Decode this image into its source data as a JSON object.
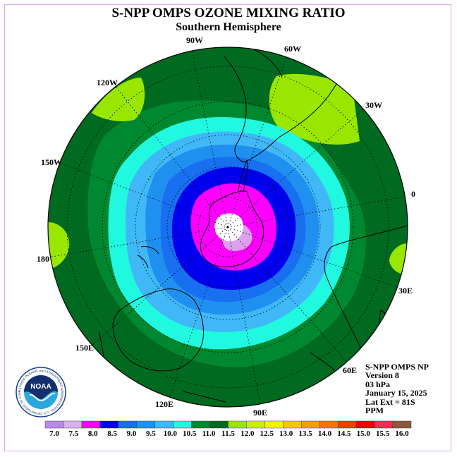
{
  "header": {
    "title": "S-NPP OMPS OZONE MIXING RATIO",
    "subtitle": "Southern Hemisphere"
  },
  "map": {
    "projection": "south-polar-stereographic",
    "longitude_labels": [
      "90W",
      "60W",
      "30W",
      "0",
      "30E",
      "60E",
      "90E",
      "120E",
      "150E",
      "180",
      "150W",
      "120W"
    ],
    "contour_levels_ppm": [
      {
        "level": 7.0,
        "color": "#ffffff"
      },
      {
        "level": 8.0,
        "color": "#dda0ee"
      },
      {
        "level": 8.5,
        "color": "#ff00ff"
      },
      {
        "level": 9.0,
        "color": "#0000ee"
      },
      {
        "level": 9.5,
        "color": "#1870f0"
      },
      {
        "level": 10.0,
        "color": "#2090f0"
      },
      {
        "level": 10.5,
        "color": "#40b8f8"
      },
      {
        "level": 11.0,
        "color": "#20f8e0"
      },
      {
        "level": 11.5,
        "color": "#008830"
      },
      {
        "level": 12.0,
        "color": "#006a20"
      },
      {
        "level": 12.5,
        "color": "#99e600"
      }
    ]
  },
  "info": {
    "line1": "S-NPP OMPS NP",
    "line2": "Version 8",
    "line3": "03 hPa",
    "line4": "January 15, 2025",
    "line5": "Lat Ext = 81S",
    "line6": "PPM"
  },
  "colorbar": {
    "colors": [
      "#bb88ee",
      "#dab0ee",
      "#ff00ff",
      "#0000ee",
      "#1870f0",
      "#2090f0",
      "#40b8f8",
      "#20f8e0",
      "#008830",
      "#006a20",
      "#99e600",
      "#ccf000",
      "#f4f400",
      "#f4c800",
      "#f0a000",
      "#f07800",
      "#f04000",
      "#f00000",
      "#e83050",
      "#8b5a3c"
    ],
    "tick_labels": [
      "7.0",
      "7.5",
      "8.0",
      "8.5",
      "9.0",
      "9.5",
      "10.0",
      "10.5",
      "11.0",
      "11.5",
      "12.0",
      "12.5",
      "13.0",
      "13.5",
      "14.0",
      "14.5",
      "15.0",
      "15.5",
      "16.0"
    ]
  },
  "logo": {
    "text": "NOAA",
    "ring_text": "NATIONAL OCEANIC AND ATMOSPHERIC ADMINISTRATION · U.S. DEPARTMENT OF COMMERCE ·"
  }
}
